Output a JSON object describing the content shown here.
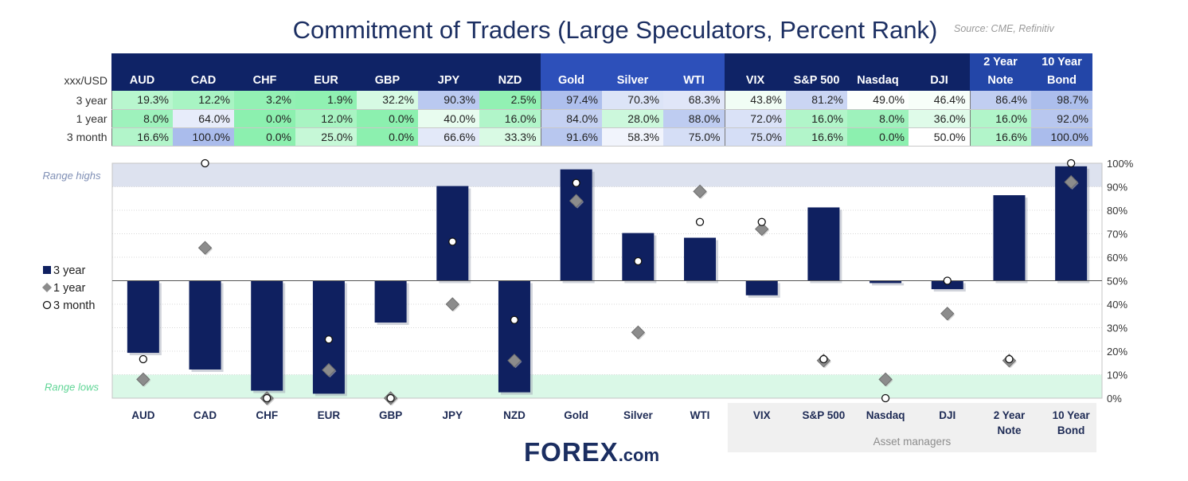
{
  "title": "Commitment of Traders (Large Speculators, Percent Rank)",
  "source": "Source: CME, Refinitiv",
  "table": {
    "corner_label": "xxx/USD",
    "columns": [
      {
        "label_top": "",
        "label": "AUD",
        "header_color": "#0f2366"
      },
      {
        "label_top": "",
        "label": "CAD",
        "header_color": "#0f2366"
      },
      {
        "label_top": "",
        "label": "CHF",
        "header_color": "#0f2366"
      },
      {
        "label_top": "",
        "label": "EUR",
        "header_color": "#0f2366"
      },
      {
        "label_top": "",
        "label": "GBP",
        "header_color": "#0f2366"
      },
      {
        "label_top": "",
        "label": "JPY",
        "header_color": "#0f2366"
      },
      {
        "label_top": "",
        "label": "NZD",
        "header_color": "#0f2366"
      },
      {
        "label_top": "",
        "label": "Gold",
        "header_color": "#2d50ba"
      },
      {
        "label_top": "",
        "label": "Silver",
        "header_color": "#2d50ba"
      },
      {
        "label_top": "",
        "label": "WTI",
        "header_color": "#2d50ba"
      },
      {
        "label_top": "",
        "label": "VIX",
        "header_color": "#0f2366"
      },
      {
        "label_top": "",
        "label": "S&P 500",
        "header_color": "#0f2366"
      },
      {
        "label_top": "",
        "label": "Nasdaq",
        "header_color": "#0f2366"
      },
      {
        "label_top": "",
        "label": "DJI",
        "header_color": "#0f2366"
      },
      {
        "label_top": "2 Year",
        "label": "Note",
        "header_color": "#2346a8"
      },
      {
        "label_top": "10 Year",
        "label": "Bond",
        "header_color": "#2346a8"
      }
    ],
    "rows": [
      {
        "label": "3 year",
        "cells": [
          "19.3%",
          "12.2%",
          "3.2%",
          "1.9%",
          "32.2%",
          "90.3%",
          "2.5%",
          "97.4%",
          "70.3%",
          "68.3%",
          "43.8%",
          "81.2%",
          "49.0%",
          "46.4%",
          "86.4%",
          "98.7%"
        ]
      },
      {
        "label": "1 year",
        "cells": [
          "8.0%",
          "64.0%",
          "0.0%",
          "12.0%",
          "0.0%",
          "40.0%",
          "16.0%",
          "84.0%",
          "28.0%",
          "88.0%",
          "72.0%",
          "16.0%",
          "8.0%",
          "36.0%",
          "16.0%",
          "92.0%"
        ]
      },
      {
        "label": "3 month",
        "cells": [
          "16.6%",
          "100.0%",
          "0.0%",
          "25.0%",
          "0.0%",
          "66.6%",
          "33.3%",
          "91.6%",
          "58.3%",
          "75.0%",
          "75.0%",
          "16.6%",
          "0.0%",
          "50.0%",
          "16.6%",
          "100.0%"
        ]
      }
    ]
  },
  "chart_data": {
    "type": "bar",
    "categories": [
      "AUD",
      "CAD",
      "CHF",
      "EUR",
      "GBP",
      "JPY",
      "NZD",
      "Gold",
      "Silver",
      "WTI",
      "VIX",
      "S&P 500",
      "Nasdaq",
      "DJI",
      "2 Year Note",
      "10 Year Bond"
    ],
    "baseline": 50,
    "series": [
      {
        "name": "3 year",
        "kind": "bar",
        "values": [
          19.3,
          12.2,
          3.2,
          1.9,
          32.2,
          90.3,
          2.5,
          97.4,
          70.3,
          68.3,
          43.8,
          81.2,
          49.0,
          46.4,
          86.4,
          98.7
        ]
      },
      {
        "name": "1 year",
        "kind": "diamond-marker",
        "values": [
          8.0,
          64.0,
          0.0,
          12.0,
          0.0,
          40.0,
          16.0,
          84.0,
          28.0,
          88.0,
          72.0,
          16.0,
          8.0,
          36.0,
          16.0,
          92.0
        ]
      },
      {
        "name": "3 month",
        "kind": "circle-marker",
        "values": [
          16.6,
          100.0,
          0.0,
          25.0,
          0.0,
          66.6,
          33.3,
          91.6,
          58.3,
          75.0,
          75.0,
          16.6,
          0.0,
          50.0,
          16.6,
          100.0
        ]
      }
    ],
    "ylim": [
      0,
      100
    ],
    "yticks": [
      "0%",
      "10%",
      "20%",
      "30%",
      "40%",
      "50%",
      "60%",
      "70%",
      "80%",
      "90%",
      "100%"
    ],
    "y_axis_side": "right",
    "range_highs": {
      "label": "Range highs",
      "from": 90,
      "to": 100
    },
    "range_lows": {
      "label": "Range lows",
      "from": 0,
      "to": 10
    },
    "legend_position": "left",
    "group_label": {
      "text": "Asset managers",
      "first_category": "VIX",
      "last_category": "10 Year Bond"
    },
    "x_tick_labels": [
      "AUD",
      "CAD",
      "CHF",
      "EUR",
      "GBP",
      "JPY",
      "NZD",
      "Gold",
      "Silver",
      "WTI",
      "VIX",
      "S&P 500",
      "Nasdaq",
      "DJI",
      "2 Year|Note",
      "10 Year|Bond"
    ],
    "colors": {
      "bar": "#0f2060",
      "diamond": "#8c8c8c",
      "circle_fill": "#ffffff",
      "circle_stroke": "#111111",
      "range_highs": "#dde2ef",
      "range_lows": "#daf8e7",
      "range_highs_text": "#7f8fb5",
      "range_lows_text": "#5fd595",
      "group_box": "#f0f0f0"
    }
  },
  "logo": {
    "main": "FOREX",
    "suffix": ".com"
  }
}
